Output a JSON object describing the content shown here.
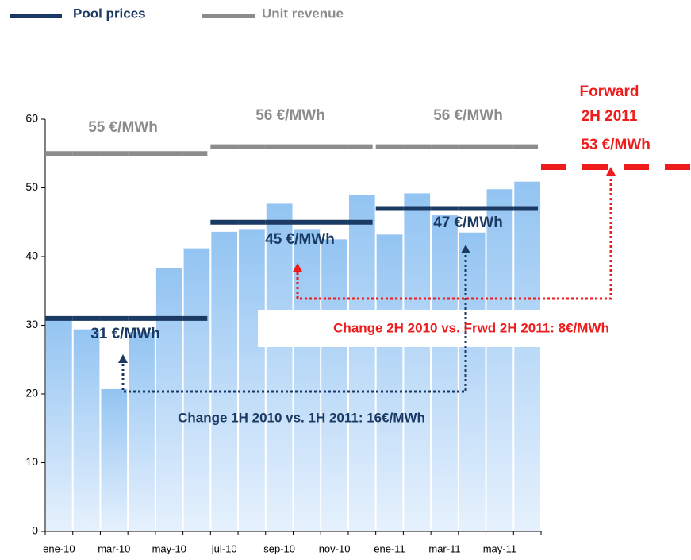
{
  "chart_data": {
    "type": "bar",
    "categories": [
      "ene-10",
      null,
      "mar-10",
      null,
      "may-10",
      null,
      "jul-10",
      null,
      "sep-10",
      null,
      "nov-10",
      null,
      "ene-11",
      null,
      "mar-11",
      null,
      "may-11",
      null
    ],
    "values": [
      31,
      29.4,
      20.7,
      29,
      38.3,
      41.2,
      43.6,
      44,
      47.7,
      44,
      42.5,
      48.9,
      43.2,
      49.2,
      46,
      43.5,
      49.8,
      50.9
    ],
    "color": "#9ccaf4",
    "series": [
      {
        "name": "Pool prices",
        "color": "#1b3a63",
        "values": [
          31,
          31,
          31,
          31,
          31,
          31,
          45,
          45,
          45,
          45,
          45,
          45,
          47,
          47,
          47,
          47,
          47,
          47
        ]
      },
      {
        "name": "Unit revenue",
        "color": "#8c8c8c",
        "values": [
          55,
          55,
          55,
          55,
          55,
          55,
          56,
          56,
          56,
          56,
          56,
          56,
          56,
          56,
          56,
          56,
          56,
          56
        ]
      }
    ],
    "forward": {
      "title": [
        "Forward",
        "2H 2011"
      ],
      "value": 53,
      "label": "53 €/MWh",
      "color": "#ee1c1c"
    },
    "annotations": [
      "55 €/MWh",
      "56 €/MWh",
      "56 €/MWh",
      "31 €/MWh",
      "45 €/MWh",
      "47 €/MWh",
      "Change 2H 2010 vs. Frwd 2H 2011: 8€/MWh",
      "Change 1H 2010 vs. 1H 2011: 16€/MWh"
    ],
    "ylim": [
      0,
      60
    ],
    "yticks": [
      0,
      10,
      20,
      30,
      40,
      50,
      60
    ]
  }
}
